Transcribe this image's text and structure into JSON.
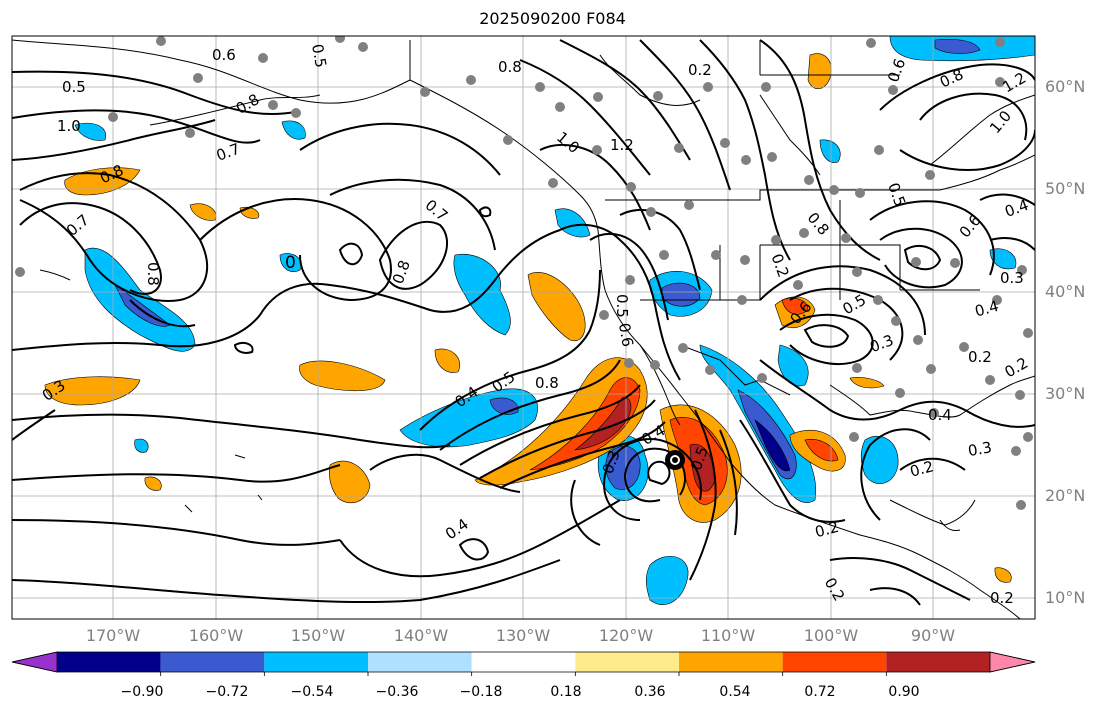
{
  "title": "2025090200 F084",
  "latitude_labels": [
    "60°N",
    "50°N",
    "40°N",
    "30°N",
    "20°N",
    "10°N"
  ],
  "longitude_labels": [
    "170°W",
    "160°W",
    "150°W",
    "140°W",
    "130°W",
    "120°W",
    "110°W",
    "100°W",
    "90°W"
  ],
  "colorbar": {
    "colors": [
      "#9932cc",
      "#00008b",
      "#3a5bd0",
      "#00bfff",
      "#b0e0ff",
      "#ffffff",
      "#fdeb8c",
      "#ffa500",
      "#ff4500",
      "#b22222",
      "#ff88aa"
    ],
    "tick_labels": [
      "−0.90",
      "−0.72",
      "−0.54",
      "−0.36",
      "−0.18",
      "0.18",
      "0.36",
      "0.54",
      "0.72",
      "0.90"
    ]
  },
  "contour_labels": [
    "0.6",
    "0.5",
    "0.5",
    "1.0",
    "0.8",
    "0.7",
    "0.7",
    "0.8",
    "0.8",
    "0.7",
    "0.8",
    "0",
    "0.3",
    "0.4",
    "0.5",
    "0.8",
    "0.4",
    "0.5",
    "0.3",
    "0.4",
    "0.5",
    "0.6",
    "0.8",
    "1.0",
    "1.2",
    "0.2",
    "0.2",
    "0.6",
    "0.8",
    "0.5",
    "0.3",
    "0.2",
    "0.3",
    "0.4",
    "0.2",
    "0.3",
    "0.2",
    "0.2",
    "0.8",
    "1.2",
    "1.0",
    "0.6",
    "0.5",
    "0.4",
    "0.6",
    "0.4",
    "0.2",
    "0.2"
  ]
}
